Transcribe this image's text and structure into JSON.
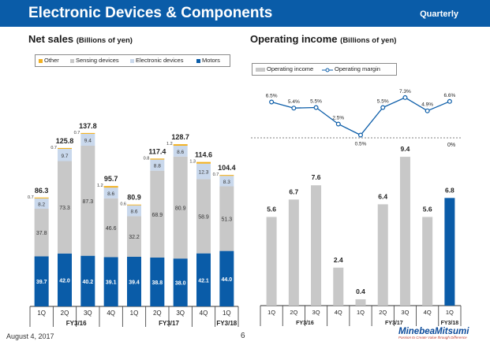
{
  "header": {
    "title": "Electronic Devices & Components",
    "period": "Quarterly"
  },
  "colors": {
    "header": "#0a5ca8",
    "motors": "#0a5ca8",
    "electronic": "#c9d8ec",
    "sensing": "#c8c8c8",
    "other": "#f2b01e",
    "operating_income": "#c8c8c8",
    "operating_income_highlight": "#0a5ca8",
    "margin_line": "#0a5ca8"
  },
  "left": {
    "title": "Net sales",
    "unit": "(Billions of yen)",
    "legend": [
      "Other",
      "Sensing devices",
      "Electronic devices",
      "Motors"
    ]
  },
  "right": {
    "title": "Operating income",
    "unit": "(Billions of yen)",
    "legend": [
      "Operating income",
      "Operating margin"
    ]
  },
  "chart_data": [
    {
      "type": "bar",
      "stacked": true,
      "title": "Net sales (Billions of yen)",
      "categories": [
        "1Q",
        "2Q",
        "3Q",
        "4Q",
        "1Q",
        "2Q",
        "3Q",
        "4Q",
        "1Q"
      ],
      "groups": [
        {
          "label": "FY3/16",
          "start": 0,
          "count": 4
        },
        {
          "label": "FY3/17",
          "start": 4,
          "count": 4
        },
        {
          "label": "FY3/18",
          "start": 8,
          "count": 1
        }
      ],
      "series": [
        {
          "name": "Motors",
          "values": [
            39.7,
            42.0,
            40.2,
            39.1,
            39.4,
            38.8,
            38.0,
            42.1,
            44.0
          ]
        },
        {
          "name": "Sensing devices",
          "values": [
            37.8,
            73.3,
            87.3,
            46.6,
            32.2,
            68.9,
            80.9,
            58.9,
            51.3
          ]
        },
        {
          "name": "Electronic devices",
          "values": [
            8.2,
            9.7,
            9.4,
            8.6,
            8.6,
            8.8,
            8.6,
            12.3,
            8.3
          ]
        },
        {
          "name": "Other",
          "values": [
            0.7,
            0.7,
            0.7,
            1.2,
            0.6,
            0.8,
            1.2,
            1.3,
            0.7
          ]
        }
      ],
      "totals": [
        "86.3",
        "125.8",
        "137.8",
        "95.7",
        "80.9",
        "117.4",
        "128.7",
        "114.6",
        "104.4"
      ],
      "ylim": [
        0,
        140
      ]
    },
    {
      "type": "bar+line",
      "title": "Operating income (Billions of yen)",
      "categories": [
        "1Q",
        "2Q",
        "3Q",
        "4Q",
        "1Q",
        "2Q",
        "3Q",
        "4Q",
        "1Q"
      ],
      "groups": [
        {
          "label": "FY3/16",
          "start": 0,
          "count": 4
        },
        {
          "label": "FY3/17",
          "start": 4,
          "count": 4
        },
        {
          "label": "FY3/18",
          "start": 8,
          "count": 1
        }
      ],
      "series": [
        {
          "name": "Operating income",
          "type": "bar",
          "values": [
            5.6,
            6.7,
            7.6,
            2.4,
            0.4,
            6.4,
            9.4,
            5.6,
            6.8
          ]
        },
        {
          "name": "Operating margin",
          "type": "line",
          "unit": "%",
          "values": [
            6.5,
            5.4,
            5.5,
            2.5,
            0.5,
            5.5,
            7.3,
            4.9,
            6.6
          ]
        }
      ],
      "margin_labels": [
        "6.5%",
        "5.4%",
        "5.5%",
        "2.5%",
        "0.5%",
        "5.5%",
        "7.3%",
        "4.9%",
        "6.6%"
      ],
      "zero_label": "0%",
      "ylim": [
        0,
        10
      ],
      "margin_ylim": [
        0,
        8
      ]
    }
  ],
  "footer": {
    "date": "August 4, 2017",
    "page": "6",
    "logo": "MinebeaMitsumi",
    "tagline": "Passion to Create Value through Difference"
  }
}
